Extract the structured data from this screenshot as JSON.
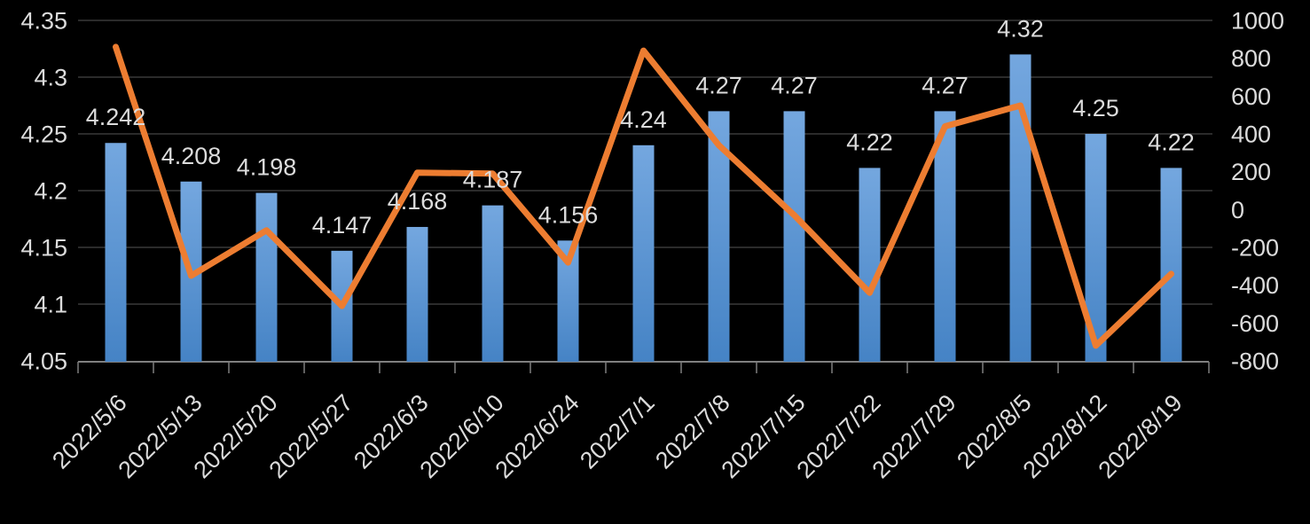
{
  "chart_data": {
    "type": "combo",
    "categories": [
      "2022/5/6",
      "2022/5/13",
      "2022/5/20",
      "2022/5/27",
      "2022/6/3",
      "2022/6/10",
      "2022/6/24",
      "2022/7/1",
      "2022/7/8",
      "2022/7/15",
      "2022/7/22",
      "2022/7/29",
      "2022/8/5",
      "2022/8/12",
      "2022/8/19"
    ],
    "series": [
      {
        "name": "bar-series",
        "type": "bar",
        "axis": "left",
        "values": [
          4.242,
          4.208,
          4.198,
          4.147,
          4.168,
          4.187,
          4.156,
          4.24,
          4.27,
          4.27,
          4.22,
          4.27,
          4.32,
          4.25,
          4.22
        ],
        "labels": [
          "4.242",
          "4.208",
          "4.198",
          "4.147",
          "4.168",
          "4.187",
          "4.156",
          "4.24",
          "4.27",
          "4.27",
          "4.22",
          "4.27",
          "4.32",
          "4.25",
          "4.22"
        ]
      },
      {
        "name": "line-series",
        "type": "line",
        "axis": "right",
        "values": [
          860,
          -350,
          -110,
          -510,
          195,
          190,
          -280,
          840,
          340,
          -30,
          -440,
          440,
          550,
          -720,
          -340
        ]
      }
    ],
    "left_axis": {
      "min": 4.05,
      "max": 4.35,
      "step": 0.05,
      "ticks": [
        "4.35",
        "4.3",
        "4.25",
        "4.2",
        "4.15",
        "4.1",
        "4.05"
      ]
    },
    "right_axis": {
      "min": -800,
      "max": 1000,
      "step": 200,
      "ticks": [
        "1000",
        "800",
        "600",
        "400",
        "200",
        "0",
        "-200",
        "-400",
        "-600",
        "-800"
      ]
    },
    "grid": true,
    "legend": false,
    "title": "",
    "colors": {
      "background": "#000000",
      "bar_top": "#74a7df",
      "bar_bottom": "#4583c5",
      "line": "#ed7d31",
      "text": "#dcdcdc",
      "gridline": "#2b2b2b",
      "axis_line": "#7f7f7f"
    }
  }
}
